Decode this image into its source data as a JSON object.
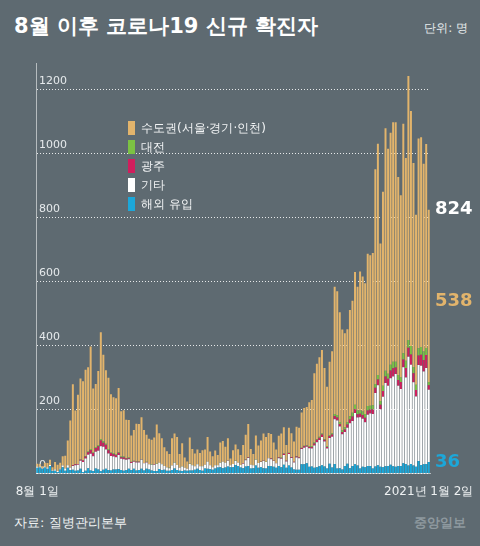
{
  "chart_data": {
    "type": "bar",
    "title": "8월 이후 코로나19 신규 확진자",
    "unit": "단위: 명",
    "source": "자료: 질병관리본부",
    "credit": "중앙일보",
    "stacked": true,
    "grid": true,
    "legend": "upper left",
    "ylim": [
      0,
      1280
    ],
    "yticks": [
      0,
      200,
      400,
      600,
      800,
      1000,
      1200
    ],
    "categories": [
      "8월 1일",
      null,
      null,
      null,
      null,
      null,
      null,
      null,
      null,
      null,
      null,
      null,
      null,
      null,
      null,
      null,
      null,
      null,
      null,
      null,
      null,
      null,
      null,
      null,
      null,
      null,
      null,
      null,
      null,
      null,
      null,
      null,
      null,
      null,
      null,
      null,
      null,
      null,
      null,
      null,
      null,
      null,
      null,
      null,
      null,
      null,
      null,
      null,
      null,
      null,
      null,
      null,
      null,
      null,
      null,
      null,
      null,
      null,
      null,
      null,
      null,
      null,
      null,
      null,
      null,
      null,
      null,
      null,
      null,
      null,
      null,
      null,
      null,
      null,
      null,
      null,
      null,
      null,
      null,
      null,
      null,
      null,
      null,
      null,
      null,
      null,
      null,
      null,
      null,
      null,
      null,
      null,
      null,
      null,
      null,
      null,
      null,
      null,
      null,
      null,
      null,
      null,
      null,
      null,
      null,
      null,
      null,
      null,
      null,
      null,
      null,
      null,
      null,
      null,
      null,
      null,
      null,
      null,
      null,
      null,
      null,
      null,
      null,
      null,
      null,
      null,
      null,
      null,
      null,
      null,
      null,
      null,
      null,
      null,
      null,
      null,
      null,
      null,
      null,
      null,
      null,
      null,
      null,
      null,
      null,
      null,
      null,
      null,
      null,
      null,
      null,
      null,
      null,
      null,
      "2021년 1월 2일"
    ],
    "series": [
      {
        "name": "수도권(서울·경기·인천)",
        "color": "#e2b46c",
        "values": [
          10,
          9,
          6,
          13,
          14,
          16,
          10,
          23,
          20,
          19,
          29,
          40,
          77,
          146,
          252,
          168,
          216,
          253,
          246,
          269,
          263,
          320,
          200,
          197,
          231,
          334,
          270,
          230,
          222,
          182,
          174,
          175,
          200,
          142,
          145,
          119,
          117,
          82,
          96,
          118,
          117,
          131,
          103,
          84,
          79,
          77,
          84,
          122,
          92,
          80,
          58,
          51,
          43,
          85,
          90,
          87,
          43,
          72,
          32,
          23,
          82,
          50,
          40,
          45,
          41,
          49,
          47,
          77,
          43,
          34,
          45,
          32,
          62,
          65,
          50,
          68,
          21,
          43,
          51,
          42,
          31,
          57,
          77,
          104,
          49,
          35,
          75,
          55,
          65,
          85,
          77,
          78,
          76,
          57,
          42,
          67,
          75,
          82,
          49,
          78,
          75,
          63,
          92,
          92,
          110,
          118,
          120,
          138,
          145,
          216,
          235,
          248,
          261,
          222,
          186,
          229,
          256,
          397,
          386,
          343,
          315,
          293,
          290,
          332,
          350,
          414,
          386,
          434,
          421,
          408,
          475,
          470,
          476,
          670,
          722,
          491,
          606,
          757,
          702,
          724,
          748,
          748,
          618,
          569,
          716,
          633,
          824,
          734,
          637,
          531,
          655,
          655,
          586,
          637,
          538
        ]
      },
      {
        "name": "대전",
        "color": "#7cc243",
        "values": [
          0,
          0,
          0,
          0,
          0,
          0,
          0,
          0,
          0,
          0,
          0,
          0,
          0,
          0,
          1,
          0,
          0,
          1,
          1,
          2,
          2,
          3,
          2,
          3,
          4,
          4,
          5,
          3,
          4,
          2,
          3,
          3,
          2,
          2,
          3,
          2,
          2,
          1,
          1,
          1,
          1,
          1,
          0,
          1,
          0,
          1,
          0,
          1,
          0,
          1,
          0,
          0,
          1,
          0,
          1,
          0,
          0,
          1,
          0,
          0,
          1,
          1,
          0,
          1,
          0,
          1,
          0,
          0,
          0,
          0,
          1,
          0,
          1,
          0,
          0,
          1,
          0,
          0,
          1,
          0,
          0,
          0,
          1,
          1,
          0,
          0,
          1,
          0,
          1,
          0,
          1,
          0,
          1,
          0,
          0,
          1,
          1,
          1,
          0,
          1,
          0,
          0,
          1,
          1,
          1,
          2,
          1,
          2,
          2,
          3,
          2,
          3,
          3,
          2,
          2,
          3,
          4,
          6,
          8,
          6,
          5,
          7,
          8,
          10,
          12,
          14,
          12,
          10,
          11,
          12,
          14,
          12,
          13,
          12,
          14,
          12,
          16,
          18,
          16,
          18,
          20,
          18,
          16,
          14,
          20,
          22,
          24,
          26,
          20,
          16,
          22,
          24,
          26,
          22,
          10
        ]
      },
      {
        "name": "광주",
        "color": "#d11e5d",
        "values": [
          0,
          0,
          0,
          0,
          0,
          0,
          0,
          0,
          0,
          0,
          0,
          0,
          0,
          1,
          2,
          3,
          2,
          3,
          5,
          6,
          8,
          12,
          10,
          12,
          14,
          18,
          12,
          15,
          10,
          9,
          8,
          6,
          7,
          5,
          5,
          4,
          3,
          3,
          2,
          2,
          2,
          1,
          1,
          1,
          1,
          0,
          1,
          0,
          0,
          0,
          0,
          0,
          0,
          0,
          0,
          0,
          0,
          0,
          0,
          0,
          0,
          0,
          0,
          0,
          0,
          0,
          0,
          0,
          0,
          0,
          0,
          0,
          0,
          0,
          0,
          1,
          0,
          0,
          0,
          0,
          0,
          1,
          1,
          1,
          0,
          0,
          0,
          0,
          1,
          1,
          0,
          1,
          2,
          1,
          1,
          2,
          3,
          4,
          2,
          3,
          2,
          2,
          3,
          2,
          3,
          4,
          3,
          4,
          5,
          6,
          8,
          7,
          8,
          6,
          5,
          6,
          7,
          10,
          9,
          8,
          7,
          8,
          10,
          12,
          14,
          12,
          10,
          11,
          12,
          14,
          13,
          12,
          14,
          16,
          18,
          14,
          18,
          20,
          22,
          24,
          26,
          20,
          18,
          22,
          24,
          30,
          28,
          32,
          28,
          20,
          30,
          34,
          36,
          40,
          14
        ]
      },
      {
        "name": "기타",
        "color": "#ffffff",
        "values": [
          3,
          2,
          2,
          2,
          4,
          3,
          2,
          4,
          3,
          2,
          5,
          7,
          8,
          8,
          12,
          17,
          18,
          25,
          31,
          38,
          42,
          52,
          46,
          52,
          58,
          78,
          72,
          60,
          52,
          45,
          40,
          38,
          44,
          35,
          36,
          32,
          30,
          22,
          22,
          25,
          24,
          28,
          22,
          20,
          16,
          18,
          20,
          22,
          20,
          18,
          12,
          10,
          8,
          14,
          18,
          16,
          9,
          14,
          8,
          6,
          20,
          16,
          11,
          14,
          12,
          14,
          12,
          22,
          12,
          8,
          10,
          7,
          14,
          20,
          15,
          18,
          6,
          10,
          12,
          10,
          8,
          14,
          20,
          25,
          12,
          9,
          18,
          15,
          16,
          22,
          20,
          24,
          22,
          18,
          14,
          24,
          26,
          30,
          20,
          36,
          30,
          22,
          38,
          36,
          48,
          52,
          52,
          58,
          56,
          70,
          78,
          82,
          88,
          78,
          62,
          80,
          96,
          140,
          150,
          130,
          110,
          106,
          112,
          140,
          140,
          160,
          150,
          160,
          150,
          140,
          160,
          164,
          170,
          230,
          250,
          180,
          220,
          260,
          250,
          270,
          280,
          290,
          250,
          240,
          300,
          270,
          340,
          310,
          260,
          220,
          300,
          310,
          290,
          300,
          226
        ]
      },
      {
        "name": "해외 유입",
        "color": "#1ca7d9",
        "values": [
          18,
          19,
          15,
          19,
          15,
          24,
          8,
          9,
          5,
          13,
          20,
          9,
          18,
          11,
          12,
          9,
          10,
          15,
          5,
          9,
          17,
          10,
          8,
          16,
          13,
          7,
          12,
          15,
          11,
          10,
          13,
          13,
          14,
          11,
          9,
          11,
          15,
          11,
          15,
          10,
          11,
          15,
          10,
          15,
          13,
          10,
          8,
          8,
          14,
          11,
          12,
          9,
          9,
          11,
          16,
          11,
          9,
          8,
          10,
          9,
          10,
          10,
          12,
          15,
          11,
          9,
          16,
          15,
          14,
          12,
          16,
          19,
          20,
          17,
          19,
          22,
          20,
          20,
          27,
          24,
          19,
          17,
          22,
          24,
          16,
          17,
          25,
          18,
          20,
          17,
          16,
          24,
          23,
          21,
          18,
          24,
          20,
          28,
          18,
          25,
          19,
          13,
          12,
          12,
          29,
          29,
          32,
          21,
          22,
          18,
          20,
          23,
          26,
          22,
          16,
          31,
          19,
          30,
          16,
          17,
          13,
          24,
          31,
          17,
          24,
          29,
          25,
          16,
          21,
          20,
          24,
          24,
          16,
          22,
          26,
          21,
          20,
          23,
          24,
          28,
          23,
          21,
          24,
          24,
          32,
          30,
          25,
          30,
          25,
          21,
          39,
          27,
          29,
          30,
          36
        ]
      }
    ],
    "annotations": [
      {
        "text": "824",
        "value": 824,
        "color": "#ffffff"
      },
      {
        "text": "538",
        "value": 538,
        "color": "#e2b46c"
      },
      {
        "text": "36",
        "value": 36,
        "color": "#1ca7d9"
      }
    ]
  }
}
